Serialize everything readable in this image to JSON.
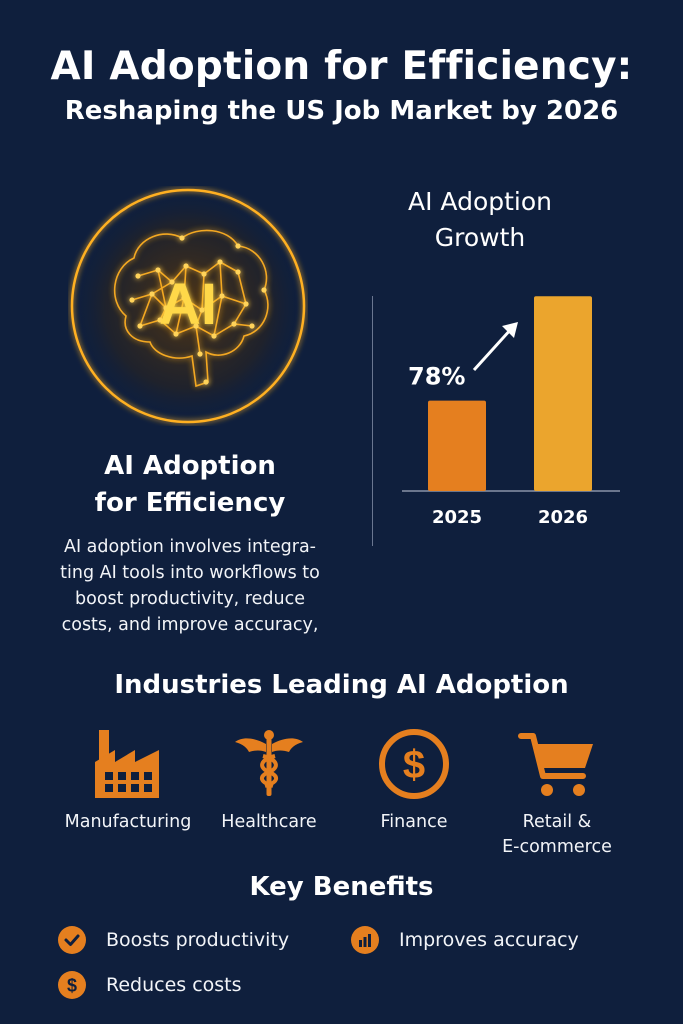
{
  "header": {
    "title": "AI Adoption for Efficiency:",
    "subtitle": "Reshaping the US Job Market by 2026"
  },
  "brain": {
    "label": "AI"
  },
  "intro": {
    "heading_line1": "AI Adoption",
    "heading_line2": "for Efficiency",
    "body_line1": "AI adoption involves integra-",
    "body_line2": "ting AI tools into workflows to",
    "body_line3": "boost productivity, reduce",
    "body_line4": "costs, and improve accuracy,"
  },
  "growth": {
    "title_line1": "AI Adoption",
    "title_line2": "Growth"
  },
  "chart_data": {
    "type": "bar",
    "title": "AI Adoption Growth",
    "categories": [
      "2025",
      "2026"
    ],
    "values": [
      78,
      95
    ],
    "data_labels": [
      "78%",
      ""
    ],
    "colors": [
      "#e57f1f",
      "#eba52d"
    ],
    "ylim": [
      0,
      100
    ],
    "grid": false,
    "annotation": "arrow from 2025 bar to 2026 bar"
  },
  "industries": {
    "title": "Industries Leading AI Adoption",
    "items": [
      {
        "label": "Manufacturing",
        "icon": "factory-icon"
      },
      {
        "label": "Healthcare",
        "icon": "caduceus-icon"
      },
      {
        "label": "Finance",
        "icon": "dollar-coin-icon"
      },
      {
        "label_line1": "Retail &",
        "label_line2": "E-commerce",
        "icon": "shopping-cart-icon"
      }
    ]
  },
  "benefits": {
    "title": "Key Benefits",
    "items": [
      {
        "label": "Boosts productivity",
        "icon": "check-circle-icon"
      },
      {
        "label": "Improves accuracy",
        "icon": "bar-chart-circle-icon"
      },
      {
        "label": "Reduces costs",
        "icon": "dollar-circle-icon"
      }
    ]
  },
  "colors": {
    "background": "#0f1f3d",
    "accent_orange": "#e57f1f",
    "accent_gold": "#eba52d",
    "glow": "#ffb020"
  }
}
